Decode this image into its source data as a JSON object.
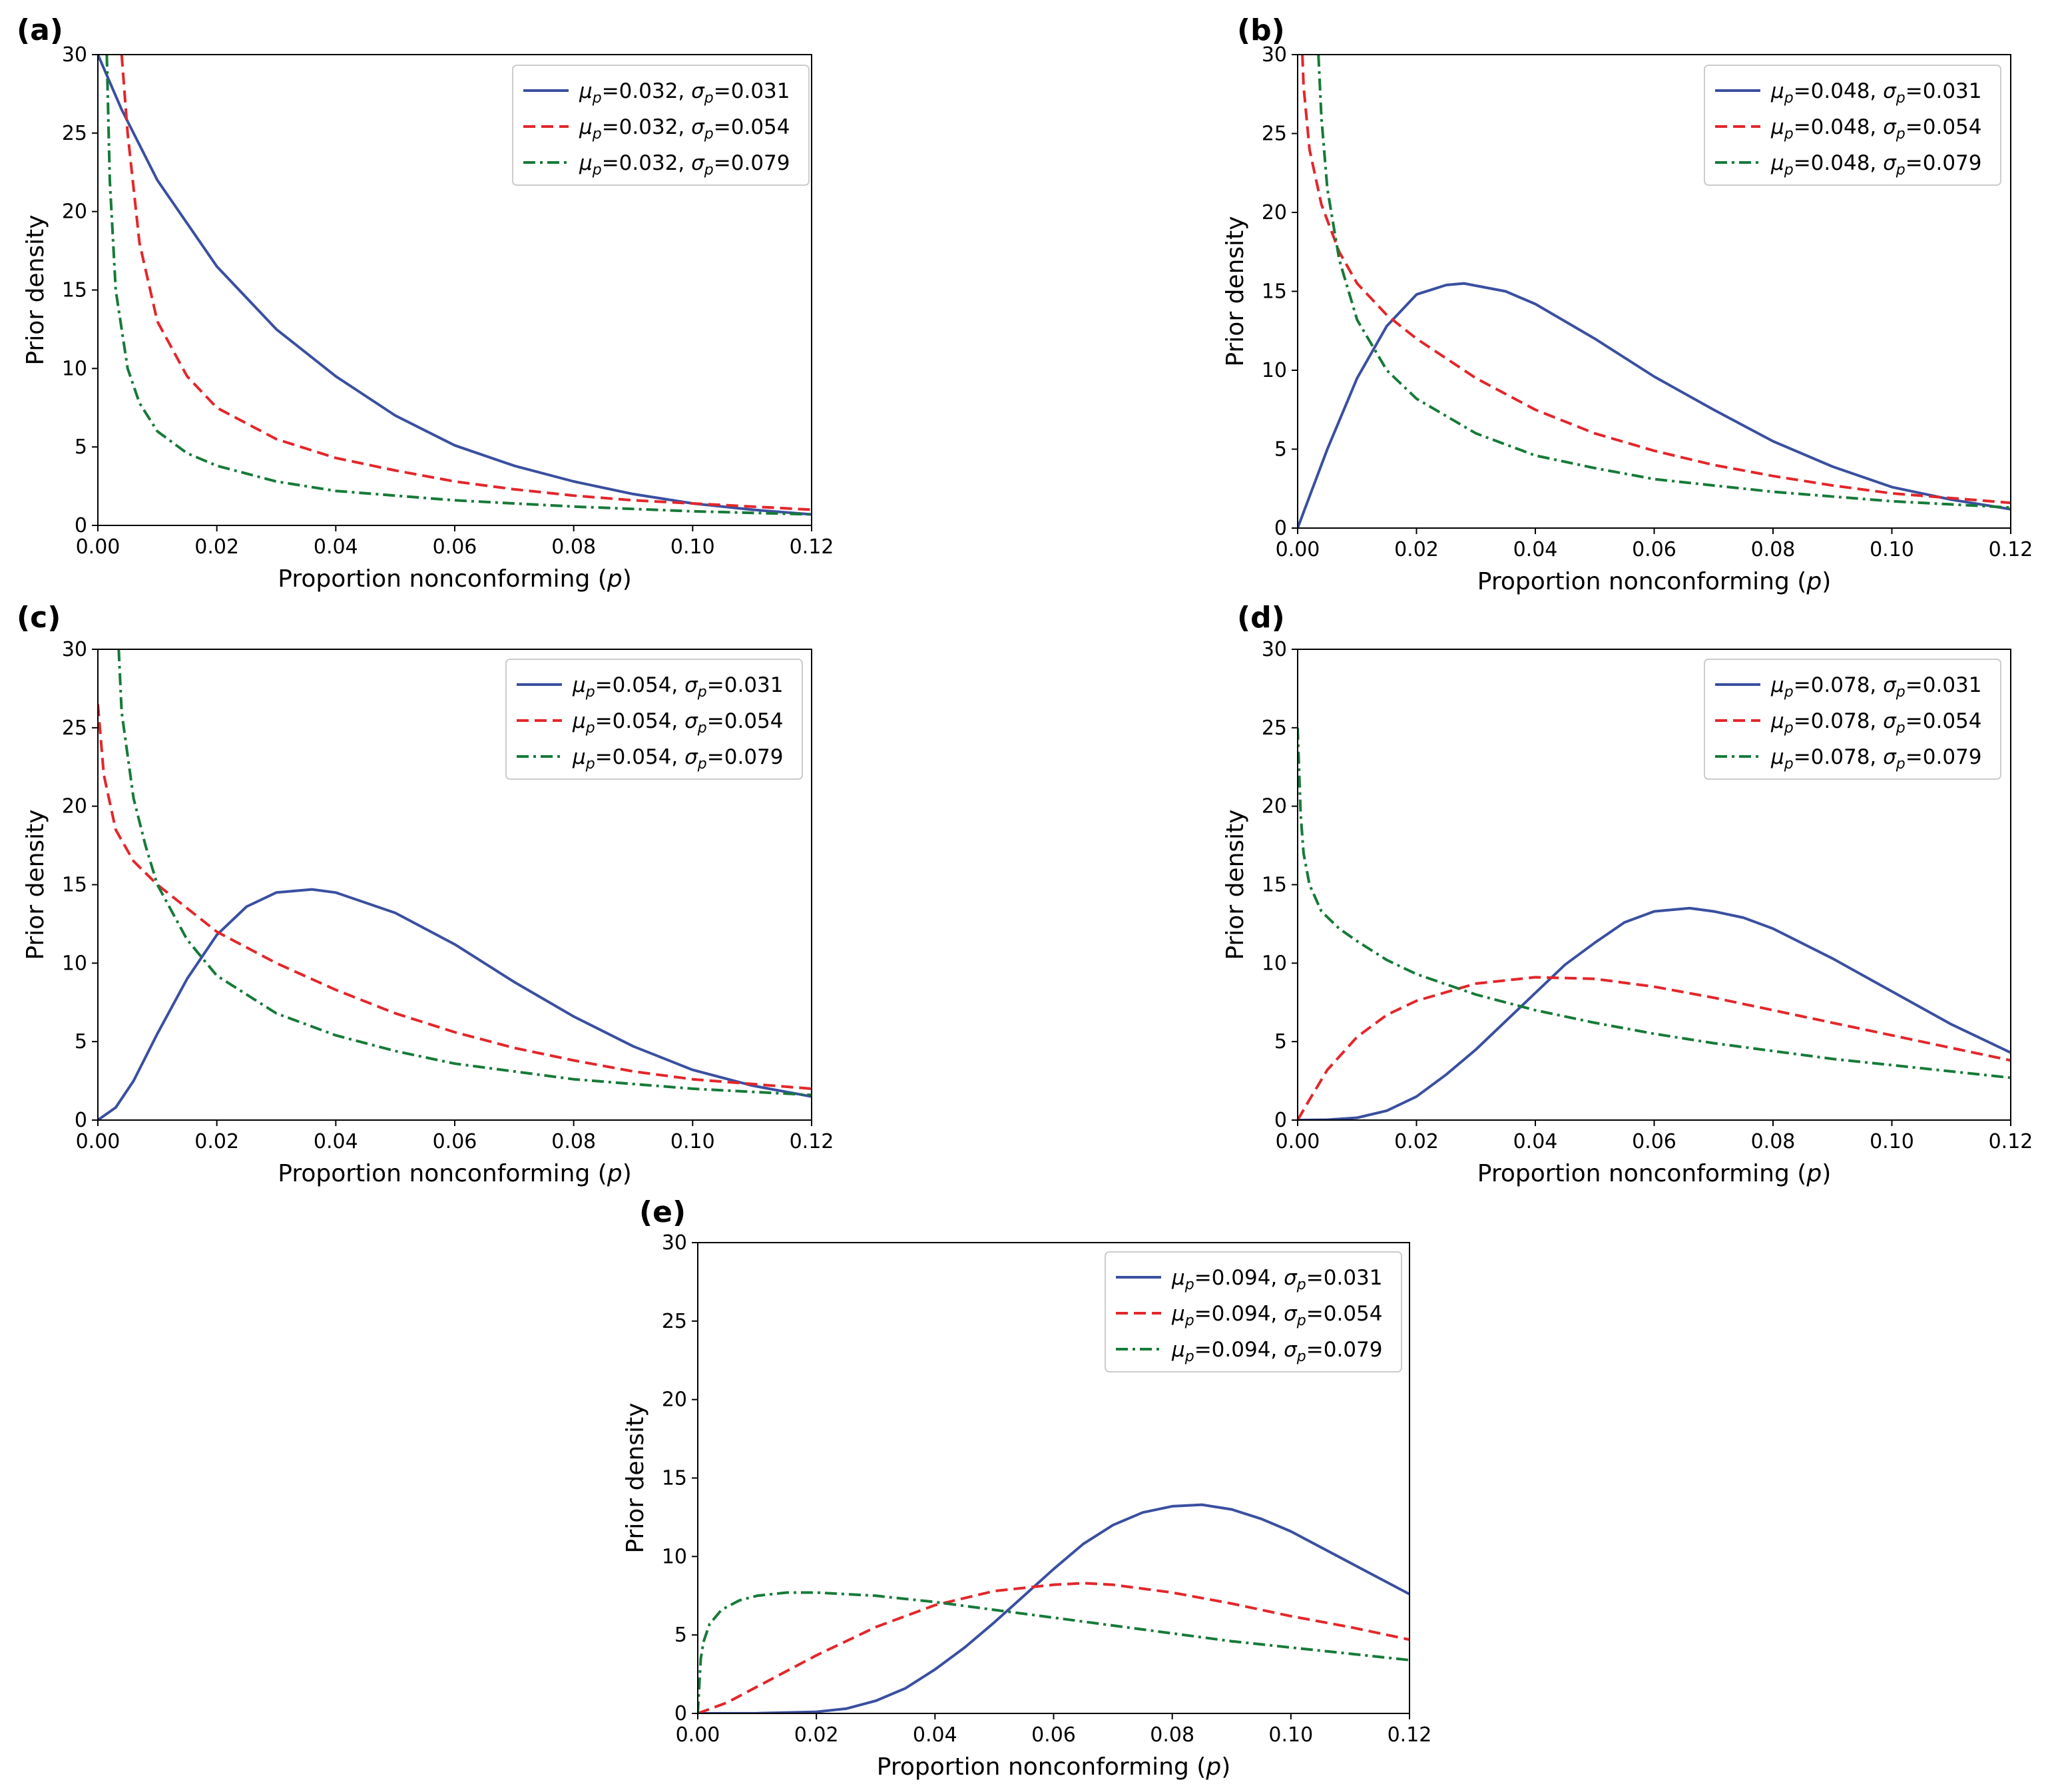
{
  "figure": {
    "xlabel_main": "Proportion nonconforming (",
    "xlabel_var": "p",
    "xlabel_close": ")",
    "ylabel": "Prior density"
  },
  "colors": {
    "blue": "#3a4fa0",
    "red": "#e3262a",
    "green": "#167a38"
  },
  "chart_data": [
    {
      "id": "a",
      "panel_label": "(a)",
      "type": "line",
      "xlim": [
        0,
        0.12
      ],
      "ylim": [
        0,
        30
      ],
      "xticks": [
        "0.00",
        "0.02",
        "0.04",
        "0.06",
        "0.08",
        "0.10",
        "0.12"
      ],
      "yticks": [
        "0",
        "5",
        "10",
        "15",
        "20",
        "25",
        "30"
      ],
      "series": [
        {
          "mu_label": "0.032",
          "sigma_label": "0.031",
          "style": "solid",
          "color": "blue",
          "x": [
            0,
            0.004,
            0.01,
            0.02,
            0.03,
            0.04,
            0.05,
            0.06,
            0.07,
            0.08,
            0.09,
            0.1,
            0.11,
            0.12
          ],
          "y": [
            30,
            26.5,
            22,
            16.5,
            12.5,
            9.5,
            7,
            5.1,
            3.8,
            2.8,
            2.0,
            1.4,
            1.0,
            0.7
          ]
        },
        {
          "mu_label": "0.032",
          "sigma_label": "0.054",
          "style": "dashed",
          "color": "red",
          "x": [
            0.004,
            0.005,
            0.007,
            0.01,
            0.015,
            0.02,
            0.03,
            0.04,
            0.05,
            0.06,
            0.07,
            0.08,
            0.09,
            0.1,
            0.11,
            0.12
          ],
          "y": [
            30,
            25,
            18,
            13,
            9.5,
            7.5,
            5.5,
            4.3,
            3.5,
            2.8,
            2.3,
            1.9,
            1.6,
            1.4,
            1.2,
            1.0
          ]
        },
        {
          "mu_label": "0.032",
          "sigma_label": "0.079",
          "style": "dashdot",
          "color": "green",
          "x": [
            0.0015,
            0.002,
            0.003,
            0.005,
            0.007,
            0.01,
            0.015,
            0.02,
            0.03,
            0.04,
            0.06,
            0.08,
            0.1,
            0.12
          ],
          "y": [
            30,
            22,
            15,
            10,
            7.8,
            6,
            4.6,
            3.8,
            2.8,
            2.2,
            1.6,
            1.2,
            0.9,
            0.7
          ]
        }
      ]
    },
    {
      "id": "b",
      "panel_label": "(b)",
      "type": "line",
      "xlim": [
        0,
        0.12
      ],
      "ylim": [
        0,
        30
      ],
      "xticks": [
        "0.00",
        "0.02",
        "0.04",
        "0.06",
        "0.08",
        "0.10",
        "0.12"
      ],
      "yticks": [
        "0",
        "5",
        "10",
        "15",
        "20",
        "25",
        "30"
      ],
      "series": [
        {
          "mu_label": "0.048",
          "sigma_label": "0.031",
          "style": "solid",
          "color": "blue",
          "x": [
            0,
            0.002,
            0.005,
            0.01,
            0.015,
            0.02,
            0.025,
            0.028,
            0.035,
            0.04,
            0.05,
            0.06,
            0.07,
            0.08,
            0.09,
            0.1,
            0.11,
            0.12
          ],
          "y": [
            0,
            2,
            5,
            9.5,
            12.8,
            14.8,
            15.4,
            15.5,
            15,
            14.2,
            12,
            9.6,
            7.5,
            5.5,
            3.9,
            2.6,
            1.8,
            1.2
          ]
        },
        {
          "mu_label": "0.048",
          "sigma_label": "0.054",
          "style": "dashed",
          "color": "red",
          "x": [
            0.0008,
            0.001,
            0.002,
            0.004,
            0.007,
            0.01,
            0.015,
            0.02,
            0.03,
            0.04,
            0.05,
            0.06,
            0.07,
            0.08,
            0.09,
            0.1,
            0.11,
            0.12
          ],
          "y": [
            30,
            28,
            24,
            20.5,
            17.5,
            15.5,
            13.5,
            12,
            9.5,
            7.5,
            6,
            4.9,
            4,
            3.3,
            2.7,
            2.2,
            1.9,
            1.6
          ]
        },
        {
          "mu_label": "0.048",
          "sigma_label": "0.079",
          "style": "dashdot",
          "color": "green",
          "x": [
            0.0035,
            0.004,
            0.005,
            0.007,
            0.01,
            0.015,
            0.02,
            0.03,
            0.04,
            0.05,
            0.06,
            0.08,
            0.1,
            0.12
          ],
          "y": [
            30,
            26,
            21.5,
            17,
            13.2,
            10,
            8.2,
            6,
            4.6,
            3.8,
            3.1,
            2.3,
            1.7,
            1.3
          ]
        }
      ]
    },
    {
      "id": "c",
      "panel_label": "(c)",
      "type": "line",
      "xlim": [
        0,
        0.12
      ],
      "ylim": [
        0,
        30
      ],
      "xticks": [
        "0.00",
        "0.02",
        "0.04",
        "0.06",
        "0.08",
        "0.10",
        "0.12"
      ],
      "yticks": [
        "0",
        "5",
        "10",
        "15",
        "20",
        "25",
        "30"
      ],
      "series": [
        {
          "mu_label": "0.054",
          "sigma_label": "0.031",
          "style": "solid",
          "color": "blue",
          "x": [
            0,
            0.003,
            0.006,
            0.01,
            0.015,
            0.02,
            0.025,
            0.03,
            0.036,
            0.04,
            0.05,
            0.06,
            0.07,
            0.08,
            0.09,
            0.1,
            0.11,
            0.12
          ],
          "y": [
            0,
            0.8,
            2.5,
            5.5,
            9,
            11.8,
            13.6,
            14.5,
            14.7,
            14.5,
            13.2,
            11.2,
            8.8,
            6.6,
            4.7,
            3.2,
            2.2,
            1.5
          ]
        },
        {
          "mu_label": "0.054",
          "sigma_label": "0.054",
          "style": "dashed",
          "color": "red",
          "x": [
            0,
            0.001,
            0.003,
            0.006,
            0.01,
            0.015,
            0.02,
            0.03,
            0.04,
            0.05,
            0.06,
            0.07,
            0.08,
            0.09,
            0.1,
            0.11,
            0.12
          ],
          "y": [
            26.5,
            22,
            18.5,
            16.5,
            15,
            13.5,
            12,
            10,
            8.3,
            6.8,
            5.6,
            4.6,
            3.8,
            3.1,
            2.6,
            2.3,
            2.0
          ]
        },
        {
          "mu_label": "0.054",
          "sigma_label": "0.079",
          "style": "dashdot",
          "color": "green",
          "x": [
            0.0035,
            0.004,
            0.006,
            0.008,
            0.01,
            0.015,
            0.02,
            0.03,
            0.04,
            0.05,
            0.06,
            0.08,
            0.1,
            0.12
          ],
          "y": [
            30,
            26,
            20.5,
            17.5,
            15,
            11.5,
            9.2,
            6.8,
            5.4,
            4.4,
            3.6,
            2.6,
            2.0,
            1.6
          ]
        }
      ]
    },
    {
      "id": "d",
      "panel_label": "(d)",
      "type": "line",
      "xlim": [
        0,
        0.12
      ],
      "ylim": [
        0,
        30
      ],
      "xticks": [
        "0.00",
        "0.02",
        "0.04",
        "0.06",
        "0.08",
        "0.10",
        "0.12"
      ],
      "yticks": [
        "0",
        "5",
        "10",
        "15",
        "20",
        "25",
        "30"
      ],
      "series": [
        {
          "mu_label": "0.078",
          "sigma_label": "0.031",
          "style": "solid",
          "color": "blue",
          "x": [
            0,
            0.005,
            0.01,
            0.015,
            0.02,
            0.025,
            0.03,
            0.035,
            0.04,
            0.045,
            0.05,
            0.055,
            0.06,
            0.066,
            0.07,
            0.075,
            0.08,
            0.09,
            0.1,
            0.11,
            0.12
          ],
          "y": [
            0,
            0.02,
            0.15,
            0.6,
            1.5,
            2.9,
            4.5,
            6.3,
            8.1,
            9.9,
            11.3,
            12.6,
            13.3,
            13.5,
            13.3,
            12.9,
            12.2,
            10.3,
            8.2,
            6.1,
            4.3
          ]
        },
        {
          "mu_label": "0.078",
          "sigma_label": "0.054",
          "style": "dashed",
          "color": "red",
          "x": [
            0,
            0.002,
            0.005,
            0.01,
            0.015,
            0.02,
            0.03,
            0.04,
            0.05,
            0.06,
            0.07,
            0.08,
            0.09,
            0.1,
            0.11,
            0.12
          ],
          "y": [
            0,
            1.3,
            3.2,
            5.3,
            6.7,
            7.6,
            8.7,
            9.1,
            9,
            8.5,
            7.8,
            7,
            6.2,
            5.4,
            4.6,
            3.8
          ]
        },
        {
          "mu_label": "0.078",
          "sigma_label": "0.079",
          "style": "dashdot",
          "color": "green",
          "x": [
            0,
            0.0005,
            0.001,
            0.002,
            0.004,
            0.007,
            0.01,
            0.015,
            0.02,
            0.03,
            0.04,
            0.05,
            0.06,
            0.07,
            0.08,
            0.09,
            0.1,
            0.11,
            0.12
          ],
          "y": [
            25,
            19.5,
            17,
            15,
            13.3,
            12.2,
            11.4,
            10.2,
            9.3,
            8,
            7,
            6.2,
            5.5,
            4.9,
            4.4,
            3.9,
            3.5,
            3.1,
            2.7
          ]
        }
      ]
    },
    {
      "id": "e",
      "panel_label": "(e)",
      "type": "line",
      "xlim": [
        0,
        0.12
      ],
      "ylim": [
        0,
        30
      ],
      "xticks": [
        "0.00",
        "0.02",
        "0.04",
        "0.06",
        "0.08",
        "0.10",
        "0.12"
      ],
      "yticks": [
        "0",
        "5",
        "10",
        "15",
        "20",
        "25",
        "30"
      ],
      "series": [
        {
          "mu_label": "0.094",
          "sigma_label": "0.031",
          "style": "solid",
          "color": "blue",
          "x": [
            0,
            0.01,
            0.02,
            0.025,
            0.03,
            0.035,
            0.04,
            0.045,
            0.05,
            0.055,
            0.06,
            0.065,
            0.07,
            0.075,
            0.08,
            0.085,
            0.09,
            0.095,
            0.1,
            0.11,
            0.12
          ],
          "y": [
            0,
            0.01,
            0.1,
            0.3,
            0.8,
            1.6,
            2.8,
            4.2,
            5.8,
            7.5,
            9.2,
            10.8,
            12,
            12.8,
            13.2,
            13.3,
            13,
            12.4,
            11.6,
            9.6,
            7.6
          ]
        },
        {
          "mu_label": "0.094",
          "sigma_label": "0.054",
          "style": "dashed",
          "color": "red",
          "x": [
            0,
            0.005,
            0.01,
            0.02,
            0.03,
            0.04,
            0.05,
            0.06,
            0.065,
            0.07,
            0.08,
            0.09,
            0.1,
            0.11,
            0.12
          ],
          "y": [
            0,
            0.7,
            1.7,
            3.7,
            5.5,
            6.9,
            7.8,
            8.2,
            8.3,
            8.2,
            7.7,
            7,
            6.2,
            5.5,
            4.7
          ]
        },
        {
          "mu_label": "0.094",
          "sigma_label": "0.079",
          "style": "dashdot",
          "color": "green",
          "x": [
            0,
            0.0005,
            0.001,
            0.002,
            0.004,
            0.007,
            0.01,
            0.015,
            0.02,
            0.03,
            0.04,
            0.05,
            0.06,
            0.07,
            0.08,
            0.09,
            0.1,
            0.11,
            0.12
          ],
          "y": [
            0,
            3.5,
            4.6,
            5.7,
            6.6,
            7.2,
            7.5,
            7.7,
            7.7,
            7.5,
            7.1,
            6.6,
            6.1,
            5.6,
            5.1,
            4.6,
            4.2,
            3.8,
            3.4
          ]
        }
      ]
    }
  ]
}
